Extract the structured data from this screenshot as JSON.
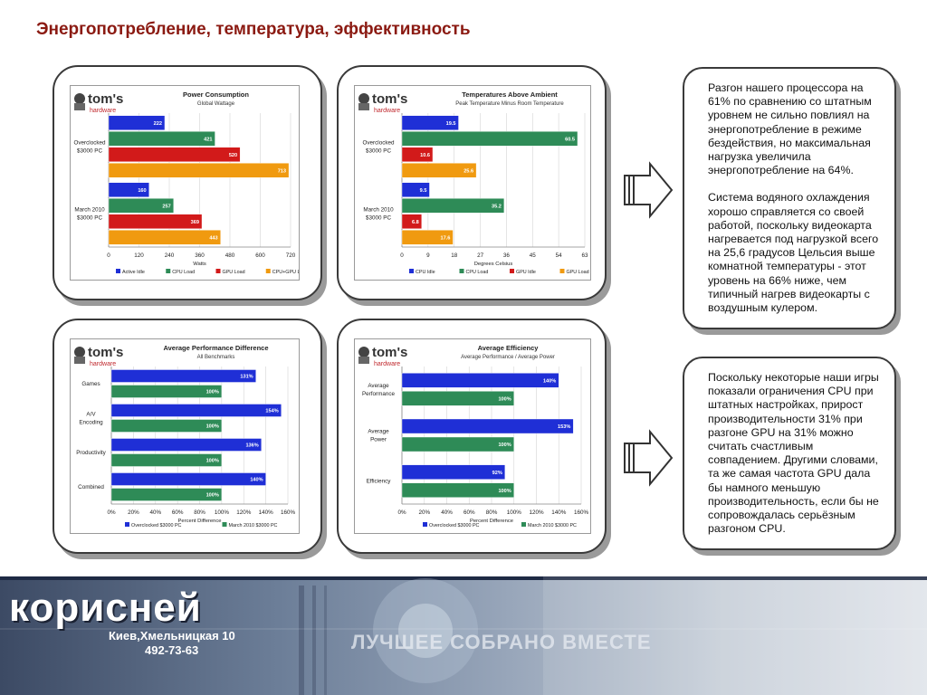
{
  "slide": {
    "title": "Энергопотребление, температура, эффективность"
  },
  "logo_text": "tom's",
  "logo_subtext": "hardware",
  "colors": {
    "title": "#8b1a12",
    "series_blue": "#1f2fd6",
    "series_green": "#2e8b57",
    "series_red": "#d21a1a",
    "series_orange": "#f09a10"
  },
  "chart_data": [
    {
      "type": "bar",
      "orientation": "horizontal",
      "title": "Power Consumption",
      "subtitle": "Global Wattage",
      "xlabel": "Watts",
      "xlim": [
        0,
        720
      ],
      "xticks": [
        "0",
        "120",
        "240",
        "360",
        "480",
        "600",
        "720"
      ],
      "categories": [
        "Overclocked $3000 PC",
        "March 2010 $3000 PC"
      ],
      "series": [
        {
          "name": "Active Idle",
          "color": "#1f2fd6",
          "values": [
            222,
            160
          ]
        },
        {
          "name": "CPU Load",
          "color": "#2e8b57",
          "values": [
            421,
            257
          ]
        },
        {
          "name": "GPU Load",
          "color": "#d21a1a",
          "values": [
            520,
            369
          ]
        },
        {
          "name": "CPU+GPU Load",
          "color": "#f09a10",
          "values": [
            713,
            443
          ]
        }
      ],
      "value_labels": [
        [
          "222",
          "421",
          "520",
          "713"
        ],
        [
          "160",
          "257",
          "369",
          "443"
        ]
      ]
    },
    {
      "type": "bar",
      "orientation": "horizontal",
      "title": "Temperatures Above Ambient",
      "subtitle": "Peak Temperature Minus Room Temperature",
      "xlabel": "Degrees Celsius",
      "xlim": [
        0,
        63
      ],
      "xticks": [
        "0",
        "9",
        "18",
        "27",
        "36",
        "45",
        "54",
        "63"
      ],
      "categories": [
        "Overclocked $3000 PC",
        "March 2010 $3000 PC"
      ],
      "series": [
        {
          "name": "CPU Idle",
          "color": "#1f2fd6",
          "values": [
            19.5,
            9.5
          ]
        },
        {
          "name": "CPU Load",
          "color": "#2e8b57",
          "values": [
            60.5,
            35.2
          ]
        },
        {
          "name": "GPU Idle",
          "color": "#d21a1a",
          "values": [
            10.6,
            6.8
          ]
        },
        {
          "name": "GPU Load",
          "color": "#f09a10",
          "values": [
            25.6,
            17.6
          ]
        }
      ],
      "value_labels": [
        [
          "19.5",
          "60.5",
          "10.6",
          "25.6"
        ],
        [
          "9.5",
          "35.2",
          "6.8",
          "17.6"
        ]
      ]
    },
    {
      "type": "bar",
      "orientation": "horizontal",
      "title": "Average Performance Difference",
      "subtitle": "All Benchmarks",
      "xlabel": "Percent Difference",
      "xlim": [
        0,
        160
      ],
      "xticks": [
        "0%",
        "20%",
        "40%",
        "60%",
        "80%",
        "100%",
        "120%",
        "140%",
        "160%"
      ],
      "categories": [
        "Games",
        "A/V Encoding",
        "Productivity",
        "Combined"
      ],
      "series": [
        {
          "name": "Overclocked $3000 PC",
          "color": "#1f2fd6",
          "values": [
            131,
            154,
            136,
            140
          ]
        },
        {
          "name": "March 2010 $3000 PC",
          "color": "#2e8b57",
          "values": [
            100,
            100,
            100,
            100
          ]
        }
      ],
      "value_labels": [
        [
          "131%",
          "100%"
        ],
        [
          "154%",
          "100%"
        ],
        [
          "136%",
          "100%"
        ],
        [
          "140%",
          "100%"
        ]
      ]
    },
    {
      "type": "bar",
      "orientation": "horizontal",
      "title": "Average Efficiency",
      "subtitle": "Average Performance / Average Power",
      "xlabel": "Percent Difference",
      "xlim": [
        0,
        160
      ],
      "xticks": [
        "0%",
        "20%",
        "40%",
        "60%",
        "80%",
        "100%",
        "120%",
        "140%",
        "160%"
      ],
      "categories": [
        "Average Performance",
        "Average Power",
        "Efficiency"
      ],
      "series": [
        {
          "name": "Overclocked $3000 PC",
          "color": "#1f2fd6",
          "values": [
            140,
            153,
            92
          ]
        },
        {
          "name": "March 2010 $3000 PC",
          "color": "#2e8b57",
          "values": [
            100,
            100,
            100
          ]
        }
      ],
      "value_labels": [
        [
          "140%",
          "100%"
        ],
        [
          "153%",
          "100%"
        ],
        [
          "92%",
          "100%"
        ]
      ]
    }
  ],
  "text_panels": [
    {
      "paragraphs": [
        "Разгон нашего процессора на 61% по сравнению со штатным уровнем не сильно повлиял на энергопотребление в режиме бездействия, но максимальная нагрузка увеличила энергопотребление на 64%.",
        "Система водяного охлаждения хорошо справляется со своей работой, поскольку видеокарта нагревается под нагрузкой всего на 25,6 градусов Цельсия выше комнатной температуры - этот уровень на 66% ниже, чем типичный нагрев видеокарты с воздушным кулером."
      ]
    },
    {
      "paragraphs": [
        "Поскольку некоторые наши игры показали ограничения CPU при штатных настройках, прирост производительности 31% при разгоне GPU на 31% можно считать счастливым совпадением. Другими словами, та же самая частота GPU дала бы намного меньшую производительность, если бы не сопровождалась серьёзным разгоном CPU."
      ]
    }
  ],
  "footer": {
    "logo": "корисней",
    "address": "Киев,Хмельницкая 10",
    "phone": "492-73-63",
    "slogan": "ЛУЧШЕЕ СОБРАНО ВМЕСТЕ"
  }
}
